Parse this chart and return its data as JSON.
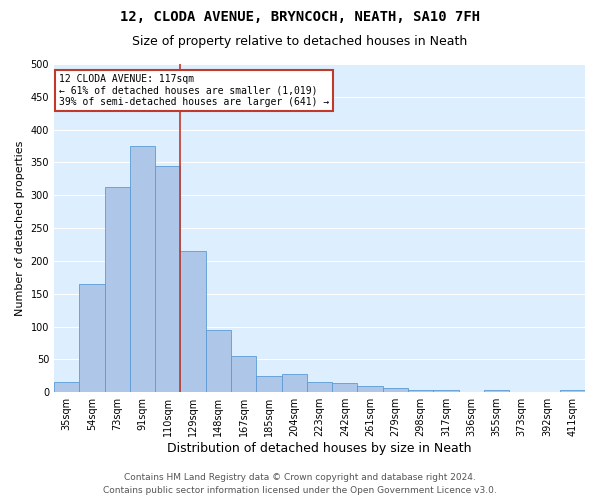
{
  "title1": "12, CLODA AVENUE, BRYNCOCH, NEATH, SA10 7FH",
  "title2": "Size of property relative to detached houses in Neath",
  "xlabel": "Distribution of detached houses by size in Neath",
  "ylabel": "Number of detached properties",
  "categories": [
    "35sqm",
    "54sqm",
    "73sqm",
    "91sqm",
    "110sqm",
    "129sqm",
    "148sqm",
    "167sqm",
    "185sqm",
    "204sqm",
    "223sqm",
    "242sqm",
    "261sqm",
    "279sqm",
    "298sqm",
    "317sqm",
    "336sqm",
    "355sqm",
    "373sqm",
    "392sqm",
    "411sqm"
  ],
  "values": [
    15,
    165,
    313,
    375,
    345,
    215,
    95,
    55,
    25,
    28,
    16,
    14,
    10,
    6,
    4,
    4,
    0,
    4,
    0,
    0,
    4
  ],
  "bar_color": "#aec6e8",
  "bar_edge_color": "#5b9bd5",
  "property_line_x": 4.5,
  "property_line_color": "#c0392b",
  "annotation_line1": "12 CLODA AVENUE: 117sqm",
  "annotation_line2": "← 61% of detached houses are smaller (1,019)",
  "annotation_line3": "39% of semi-detached houses are larger (641) →",
  "annotation_box_color": "#ffffff",
  "annotation_box_edge_color": "#c0392b",
  "ylim": [
    0,
    500
  ],
  "yticks": [
    0,
    50,
    100,
    150,
    200,
    250,
    300,
    350,
    400,
    450,
    500
  ],
  "background_color": "#ddeeff",
  "grid_color": "#ffffff",
  "footer1": "Contains HM Land Registry data © Crown copyright and database right 2024.",
  "footer2": "Contains public sector information licensed under the Open Government Licence v3.0.",
  "title1_fontsize": 10,
  "title2_fontsize": 9,
  "xlabel_fontsize": 9,
  "ylabel_fontsize": 8,
  "tick_fontsize": 7,
  "footer_fontsize": 6.5,
  "fig_width": 6.0,
  "fig_height": 5.0,
  "fig_dpi": 100
}
